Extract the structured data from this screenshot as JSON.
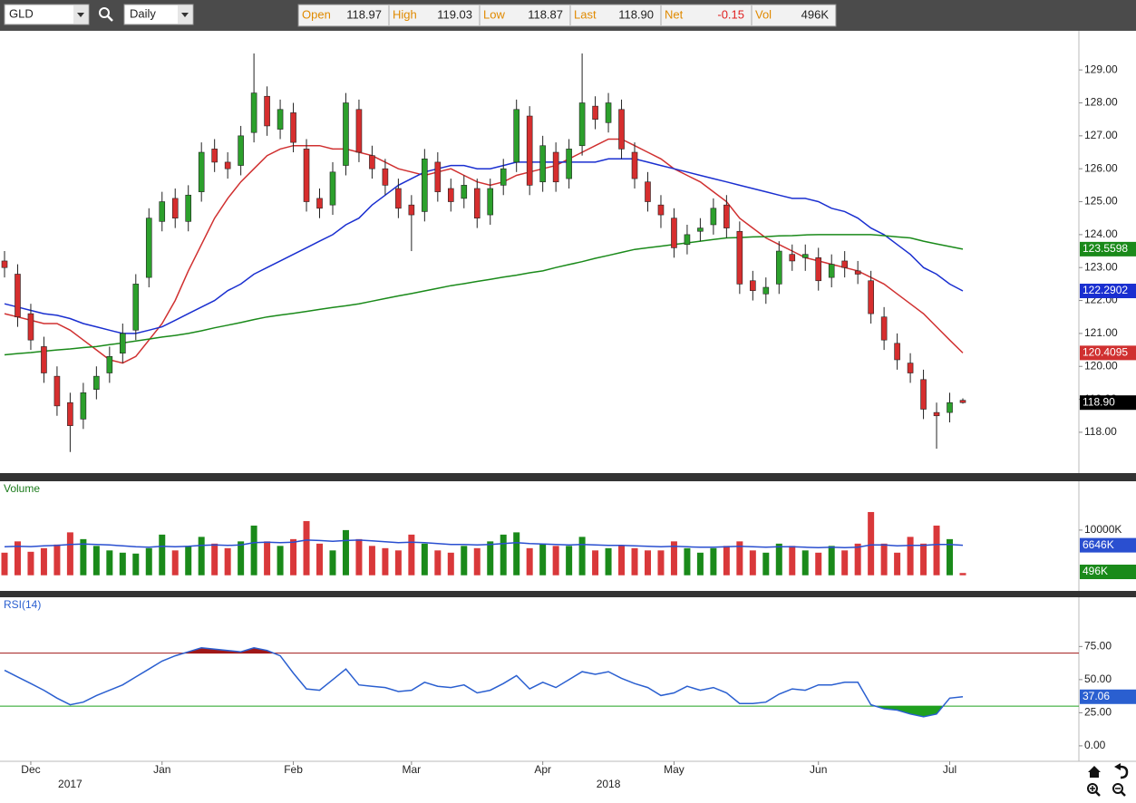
{
  "toolbar": {
    "symbol": "GLD",
    "interval": "Daily",
    "stats": [
      {
        "label": "Open",
        "value": "118.97"
      },
      {
        "label": "High",
        "value": "119.03"
      },
      {
        "label": "Low",
        "value": "118.87"
      },
      {
        "label": "Last",
        "value": "118.90"
      },
      {
        "label": "Net",
        "value": "-0.15"
      },
      {
        "label": "Vol",
        "value": "496K"
      }
    ]
  },
  "chart_data": [
    {
      "type": "candlestick",
      "categories": [
        null,
        null,
        "Dec",
        null,
        null,
        null,
        null,
        null,
        null,
        null,
        null,
        null,
        "Jan",
        null,
        null,
        null,
        null,
        null,
        null,
        null,
        null,
        null,
        "Feb",
        null,
        null,
        null,
        null,
        null,
        null,
        null,
        null,
        "Mar",
        null,
        null,
        null,
        null,
        null,
        null,
        null,
        null,
        null,
        "Apr",
        null,
        null,
        null,
        null,
        null,
        null,
        null,
        null,
        null,
        "May",
        null,
        null,
        null,
        null,
        null,
        null,
        null,
        null,
        null,
        null,
        "Jun",
        null,
        null,
        null,
        null,
        null,
        null,
        null,
        null,
        null,
        "Jul",
        null
      ],
      "year_labels": [
        null,
        null,
        null,
        null,
        null,
        "2017",
        null,
        null,
        null,
        null,
        null,
        null,
        null,
        null,
        null,
        null,
        null,
        null,
        null,
        null,
        null,
        null,
        null,
        null,
        null,
        null,
        null,
        null,
        null,
        null,
        null,
        null,
        null,
        null,
        null,
        null,
        null,
        null,
        null,
        null,
        null,
        null,
        null,
        null,
        null,
        null,
        "2018",
        null,
        null,
        null,
        null,
        null,
        null,
        null,
        null,
        null,
        null,
        null,
        null,
        null,
        null,
        null,
        null,
        null,
        null,
        null,
        null,
        null,
        null,
        null,
        null,
        null,
        null,
        null
      ],
      "open": [
        123.2,
        122.8,
        121.6,
        120.6,
        119.7,
        118.9,
        118.4,
        119.3,
        119.8,
        120.4,
        121.1,
        122.7,
        124.4,
        125.1,
        124.4,
        125.3,
        126.6,
        126.2,
        126.1,
        127.1,
        128.2,
        127.2,
        127.7,
        126.6,
        125.1,
        124.9,
        126.1,
        127.8,
        126.4,
        126.0,
        125.4,
        124.9,
        124.7,
        126.2,
        125.4,
        125.1,
        125.4,
        124.6,
        125.5,
        126.2,
        127.6,
        125.6,
        126.5,
        125.7,
        126.7,
        127.9,
        127.4,
        127.8,
        126.5,
        125.6,
        124.9,
        124.5,
        123.7,
        124.1,
        124.3,
        124.9,
        124.1,
        122.6,
        122.2,
        122.5,
        123.4,
        123.3,
        123.3,
        122.7,
        123.2,
        122.9,
        122.6,
        121.5,
        120.7,
        120.1,
        119.6,
        118.6,
        118.6,
        118.97
      ],
      "high": [
        123.5,
        123.1,
        121.9,
        120.9,
        120.0,
        119.2,
        119.5,
        120.0,
        120.6,
        121.3,
        122.8,
        124.8,
        125.3,
        125.4,
        125.5,
        126.8,
        126.9,
        126.5,
        127.3,
        129.5,
        128.5,
        128.1,
        128.0,
        126.9,
        125.4,
        126.2,
        128.3,
        128.1,
        126.7,
        126.3,
        125.7,
        125.2,
        126.6,
        126.5,
        125.7,
        125.8,
        125.7,
        125.7,
        126.3,
        128.1,
        127.9,
        127.0,
        126.8,
        126.9,
        129.5,
        128.2,
        128.3,
        128.1,
        126.8,
        125.9,
        125.2,
        124.8,
        124.3,
        124.5,
        125.1,
        125.2,
        124.4,
        122.9,
        122.7,
        123.8,
        123.7,
        123.7,
        123.6,
        123.4,
        123.5,
        123.2,
        122.9,
        121.8,
        121.0,
        120.4,
        119.9,
        118.9,
        119.2,
        119.03
      ],
      "low": [
        122.7,
        121.2,
        120.5,
        119.5,
        118.5,
        117.4,
        118.1,
        119.0,
        119.5,
        120.1,
        120.8,
        122.4,
        124.1,
        124.2,
        124.1,
        125.0,
        125.9,
        125.7,
        125.8,
        126.8,
        127.0,
        126.9,
        126.5,
        124.7,
        124.5,
        124.6,
        125.8,
        126.2,
        125.7,
        125.2,
        124.5,
        123.5,
        124.4,
        125.0,
        124.7,
        124.8,
        124.2,
        124.3,
        125.2,
        125.9,
        125.2,
        125.3,
        125.3,
        125.4,
        126.4,
        127.2,
        127.1,
        126.3,
        125.4,
        124.7,
        124.2,
        123.3,
        123.4,
        123.8,
        124.0,
        123.9,
        122.2,
        122.0,
        121.9,
        122.2,
        122.9,
        122.9,
        122.3,
        122.4,
        122.7,
        122.5,
        121.3,
        120.5,
        119.9,
        119.5,
        118.4,
        117.5,
        118.3,
        118.87
      ],
      "close": [
        123.0,
        121.5,
        120.8,
        119.8,
        118.8,
        118.2,
        119.2,
        119.7,
        120.3,
        121.0,
        122.5,
        124.5,
        125.0,
        124.5,
        125.2,
        126.5,
        126.2,
        126.0,
        127.0,
        128.3,
        127.3,
        127.8,
        126.8,
        125.0,
        124.8,
        125.9,
        128.0,
        126.5,
        126.0,
        125.5,
        124.8,
        124.6,
        126.3,
        125.3,
        125.0,
        125.5,
        124.5,
        125.4,
        126.0,
        127.8,
        125.5,
        126.7,
        125.6,
        126.6,
        128.0,
        127.5,
        128.0,
        126.6,
        125.7,
        125.0,
        124.6,
        123.6,
        124.0,
        124.2,
        124.8,
        124.2,
        122.5,
        122.3,
        122.4,
        123.5,
        123.2,
        123.4,
        122.6,
        123.1,
        123.0,
        122.8,
        121.6,
        120.8,
        120.2,
        119.8,
        118.7,
        118.5,
        118.9,
        118.9
      ],
      "last_label": "118.90",
      "up_color": "#2ca02c",
      "down_color": "#d62e2e",
      "series": [
        {
          "color": "#d03030",
          "values": [
            121.6,
            121.5,
            121.4,
            121.3,
            121.3,
            121.1,
            120.8,
            120.5,
            120.2,
            120.1,
            120.3,
            120.8,
            121.3,
            122.0,
            122.9,
            123.7,
            124.5,
            125.1,
            125.6,
            126.0,
            126.4,
            126.6,
            126.7,
            126.7,
            126.7,
            126.6,
            126.6,
            126.5,
            126.4,
            126.2,
            126.0,
            125.9,
            125.8,
            125.9,
            126.0,
            125.8,
            125.6,
            125.5,
            125.6,
            125.8,
            125.9,
            126.0,
            126.1,
            126.3,
            126.5,
            126.7,
            126.9,
            126.9,
            126.7,
            126.5,
            126.3,
            126.0,
            125.8,
            125.6,
            125.3,
            125.0,
            124.5,
            124.2,
            123.9,
            123.7,
            123.5,
            123.3,
            123.2,
            123.1,
            123.0,
            122.9,
            122.7,
            122.5,
            122.2,
            121.9,
            121.6,
            121.2,
            120.8,
            120.4095
          ]
        },
        {
          "color": "#1a2fd0",
          "values": [
            121.9,
            121.8,
            121.7,
            121.6,
            121.55,
            121.45,
            121.3,
            121.2,
            121.1,
            121.0,
            121.0,
            121.1,
            121.2,
            121.4,
            121.6,
            121.8,
            122.0,
            122.3,
            122.5,
            122.8,
            123.0,
            123.2,
            123.4,
            123.6,
            123.8,
            124.0,
            124.3,
            124.5,
            124.9,
            125.2,
            125.5,
            125.7,
            125.9,
            126.0,
            126.1,
            126.1,
            126.0,
            126.0,
            126.1,
            126.2,
            126.2,
            126.2,
            126.2,
            126.2,
            126.2,
            126.2,
            126.3,
            126.3,
            126.3,
            126.2,
            126.1,
            126.0,
            125.9,
            125.8,
            125.7,
            125.6,
            125.5,
            125.4,
            125.3,
            125.2,
            125.1,
            125.1,
            125.0,
            124.8,
            124.7,
            124.5,
            124.2,
            124.0,
            123.7,
            123.4,
            123.0,
            122.8,
            122.5,
            122.2902
          ]
        },
        {
          "color": "#1a8a1a",
          "values": [
            120.35,
            120.39,
            120.42,
            120.46,
            120.5,
            120.53,
            120.57,
            120.6,
            120.66,
            120.71,
            120.77,
            120.83,
            120.89,
            120.94,
            121.0,
            121.08,
            121.17,
            121.25,
            121.33,
            121.42,
            121.5,
            121.56,
            121.61,
            121.67,
            121.73,
            121.79,
            121.84,
            121.9,
            121.98,
            122.06,
            122.14,
            122.21,
            122.29,
            122.37,
            122.45,
            122.51,
            122.58,
            122.64,
            122.71,
            122.77,
            122.84,
            122.9,
            123.0,
            123.09,
            123.18,
            123.28,
            123.37,
            123.46,
            123.55,
            123.6,
            123.65,
            123.7,
            123.75,
            123.8,
            123.85,
            123.9,
            123.91,
            123.93,
            123.94,
            123.96,
            123.97,
            123.99,
            124.0,
            124.0,
            124.0,
            124.0,
            124.0,
            123.97,
            123.93,
            123.9,
            123.8,
            123.72,
            123.64,
            123.5598
          ]
        }
      ],
      "ylim": [
        116.76,
        130.16
      ],
      "yticks": [
        {
          "value": 118,
          "label": "118.00"
        },
        {
          "value": 119,
          "label": "119.00"
        },
        {
          "value": 120,
          "label": "120.00"
        },
        {
          "value": 121,
          "label": "121.00"
        },
        {
          "value": 122,
          "label": "122.00"
        },
        {
          "value": 123,
          "label": "123.00"
        },
        {
          "value": 124,
          "label": "124.00"
        },
        {
          "value": 125,
          "label": "125.00"
        },
        {
          "value": 126,
          "label": "126.00"
        },
        {
          "value": 127,
          "label": "127.00"
        },
        {
          "value": 128,
          "label": "128.00"
        },
        {
          "value": 129,
          "label": "129.00"
        }
      ]
    },
    {
      "type": "bar",
      "title": "Volume",
      "values": [
        5000,
        7500,
        5200,
        6000,
        6800,
        9500,
        8000,
        6500,
        5500,
        5000,
        4800,
        6000,
        9000,
        5500,
        6500,
        8500,
        7000,
        6000,
        7500,
        11000,
        7500,
        6500,
        8000,
        12000,
        7000,
        5500,
        10000,
        8000,
        6500,
        6000,
        5500,
        9000,
        7000,
        5500,
        5000,
        6500,
        6000,
        7500,
        9000,
        9500,
        6000,
        7000,
        6500,
        6500,
        8500,
        5500,
        6000,
        6500,
        6000,
        5500,
        5500,
        7500,
        6000,
        5000,
        6000,
        6500,
        7500,
        5500,
        5000,
        7000,
        6500,
        5500,
        5000,
        6500,
        5500,
        7000,
        14000,
        7000,
        5000,
        8500,
        7000,
        11000,
        8000,
        496
      ],
      "last_value_label": "496K",
      "series": [
        {
          "color": "#2a4fd0",
          "values": [
            6300,
            6400,
            6350,
            6500,
            6600,
            6800,
            6900,
            6800,
            6700,
            6500,
            6300,
            6200,
            6400,
            6300,
            6400,
            6600,
            6700,
            6600,
            6700,
            7200,
            7300,
            7200,
            7300,
            7800,
            7700,
            7500,
            7700,
            7800,
            7600,
            7400,
            7200,
            7300,
            7200,
            7000,
            6800,
            6800,
            6700,
            6800,
            7000,
            7200,
            7000,
            6900,
            6800,
            6700,
            6800,
            6700,
            6600,
            6600,
            6500,
            6400,
            6300,
            6400,
            6300,
            6200,
            6200,
            6300,
            6400,
            6300,
            6200,
            6300,
            6300,
            6200,
            6100,
            6200,
            6100,
            6200,
            6700,
            6700,
            6500,
            6600,
            6600,
            6800,
            6800,
            6646
          ]
        }
      ],
      "average_label": "6646K",
      "ylim": [
        -3469,
        20816
      ],
      "yticks": [
        {
          "value": 10000,
          "label": "10000K"
        }
      ]
    },
    {
      "type": "line",
      "title": "RSI(14)",
      "values": [
        57,
        52,
        47,
        42,
        36,
        31,
        33,
        38,
        42,
        46,
        52,
        58,
        64,
        68,
        71,
        74,
        73,
        72,
        71,
        74,
        72,
        68,
        55,
        43,
        42,
        50,
        58,
        46,
        45,
        44,
        41,
        42,
        48,
        45,
        44,
        46,
        40,
        42,
        47,
        53,
        43,
        48,
        44,
        50,
        56,
        54,
        56,
        51,
        47,
        44,
        38,
        40,
        45,
        42,
        44,
        40,
        32,
        32,
        33,
        39,
        43,
        42,
        46,
        46,
        48,
        48,
        31,
        28,
        27,
        24,
        22,
        24,
        36,
        37.06
      ],
      "color": "#2a5fd0",
      "overbought": 70,
      "oversold": 30,
      "overbought_color": "#a01818",
      "oversold_color": "#1fa01f",
      "ylim": [
        -11.7,
        112.2
      ],
      "yticks": [
        {
          "value": 0,
          "label": "0.00"
        },
        {
          "value": 25,
          "label": "25.00"
        },
        {
          "value": 50,
          "label": "50.00"
        },
        {
          "value": 75,
          "label": "75.00"
        }
      ]
    }
  ]
}
